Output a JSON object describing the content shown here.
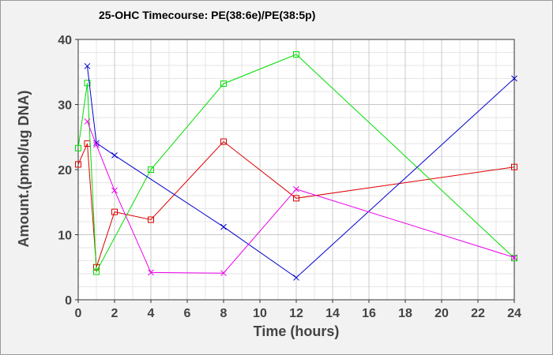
{
  "chart_data": {
    "type": "line",
    "title": "25-OHC Timecourse: PE(38:6e)/PE(38:5p)",
    "xlabel": "Time (hours)",
    "ylabel": "Amount.(pmol/ug DNA)",
    "xlim": [
      0,
      24
    ],
    "ylim": [
      0,
      40
    ],
    "xticks": [
      0,
      2,
      4,
      6,
      8,
      10,
      12,
      14,
      16,
      18,
      20,
      22,
      24
    ],
    "yticks": [
      0,
      10,
      20,
      30,
      40
    ],
    "grid": true,
    "series": [
      {
        "color": "#dd0000",
        "marker": "square",
        "points": [
          [
            0,
            20.8
          ],
          [
            0.5,
            24.0
          ],
          [
            1,
            5.0
          ],
          [
            2,
            13.5
          ],
          [
            4,
            12.3
          ],
          [
            8,
            24.3
          ],
          [
            12,
            15.6
          ],
          [
            24,
            20.4
          ]
        ]
      },
      {
        "color": "#00dd00",
        "marker": "square",
        "points": [
          [
            0,
            23.3
          ],
          [
            0.5,
            33.3
          ],
          [
            1,
            4.3
          ],
          [
            4,
            20.0
          ],
          [
            8,
            33.2
          ],
          [
            12,
            37.7
          ],
          [
            24,
            6.4
          ]
        ]
      },
      {
        "color": "#0000cc",
        "marker": "x",
        "points": [
          [
            0.5,
            35.9
          ],
          [
            1,
            24.1
          ],
          [
            2,
            22.2
          ],
          [
            8,
            11.2
          ],
          [
            12,
            3.4
          ],
          [
            24,
            34.0
          ]
        ]
      },
      {
        "color": "#ee00ee",
        "marker": "x",
        "points": [
          [
            0.5,
            27.4
          ],
          [
            1,
            23.8
          ],
          [
            2,
            16.8
          ],
          [
            4,
            4.2
          ],
          [
            8,
            4.1
          ],
          [
            12,
            17.0
          ],
          [
            24,
            6.5
          ]
        ]
      }
    ]
  }
}
